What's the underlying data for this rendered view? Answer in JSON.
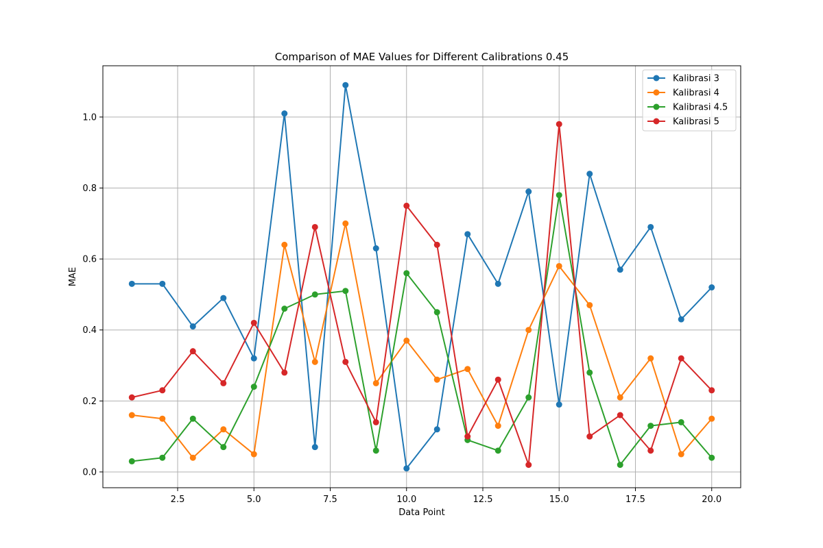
{
  "chart_data": {
    "type": "line",
    "title": "Comparison of MAE Values for Different Calibrations 0.45",
    "xlabel": "Data Point",
    "ylabel": "MAE",
    "x": [
      1,
      2,
      3,
      4,
      5,
      6,
      7,
      8,
      9,
      10,
      11,
      12,
      13,
      14,
      15,
      16,
      17,
      18,
      19,
      20
    ],
    "xlim": [
      0.05,
      20.95
    ],
    "ylim": [
      -0.0445,
      1.1445
    ],
    "xticks": [
      2.5,
      5.0,
      7.5,
      10.0,
      12.5,
      15.0,
      17.5,
      20.0
    ],
    "xtick_labels": [
      "2.5",
      "5.0",
      "7.5",
      "10.0",
      "12.5",
      "15.0",
      "17.5",
      "20.0"
    ],
    "yticks": [
      0.0,
      0.2,
      0.4,
      0.6,
      0.8,
      1.0
    ],
    "ytick_labels": [
      "0.0",
      "0.2",
      "0.4",
      "0.6",
      "0.8",
      "1.0"
    ],
    "grid": true,
    "legend_position": "top-right",
    "marker": "circle",
    "series": [
      {
        "name": "Kalibrasi 3",
        "color": "#1f77b4",
        "values": [
          0.53,
          0.53,
          0.41,
          0.49,
          0.32,
          1.01,
          0.07,
          1.09,
          0.63,
          0.01,
          0.12,
          0.67,
          0.53,
          0.79,
          0.19,
          0.84,
          0.57,
          0.69,
          0.43,
          0.52
        ]
      },
      {
        "name": "Kalibrasi 4",
        "color": "#ff7f0e",
        "values": [
          0.16,
          0.15,
          0.04,
          0.12,
          0.05,
          0.64,
          0.31,
          0.7,
          0.25,
          0.37,
          0.26,
          0.29,
          0.13,
          0.4,
          0.58,
          0.47,
          0.21,
          0.32,
          0.05,
          0.15
        ]
      },
      {
        "name": "Kalibrasi 4.5",
        "color": "#2ca02c",
        "values": [
          0.03,
          0.04,
          0.15,
          0.07,
          0.24,
          0.46,
          0.5,
          0.51,
          0.06,
          0.56,
          0.45,
          0.09,
          0.06,
          0.21,
          0.78,
          0.28,
          0.02,
          0.13,
          0.14,
          0.04
        ]
      },
      {
        "name": "Kalibrasi 5",
        "color": "#d62728",
        "values": [
          0.21,
          0.23,
          0.34,
          0.25,
          0.42,
          0.28,
          0.69,
          0.31,
          0.14,
          0.75,
          0.64,
          0.1,
          0.26,
          0.02,
          0.98,
          0.1,
          0.16,
          0.06,
          0.32,
          0.23
        ]
      }
    ]
  }
}
